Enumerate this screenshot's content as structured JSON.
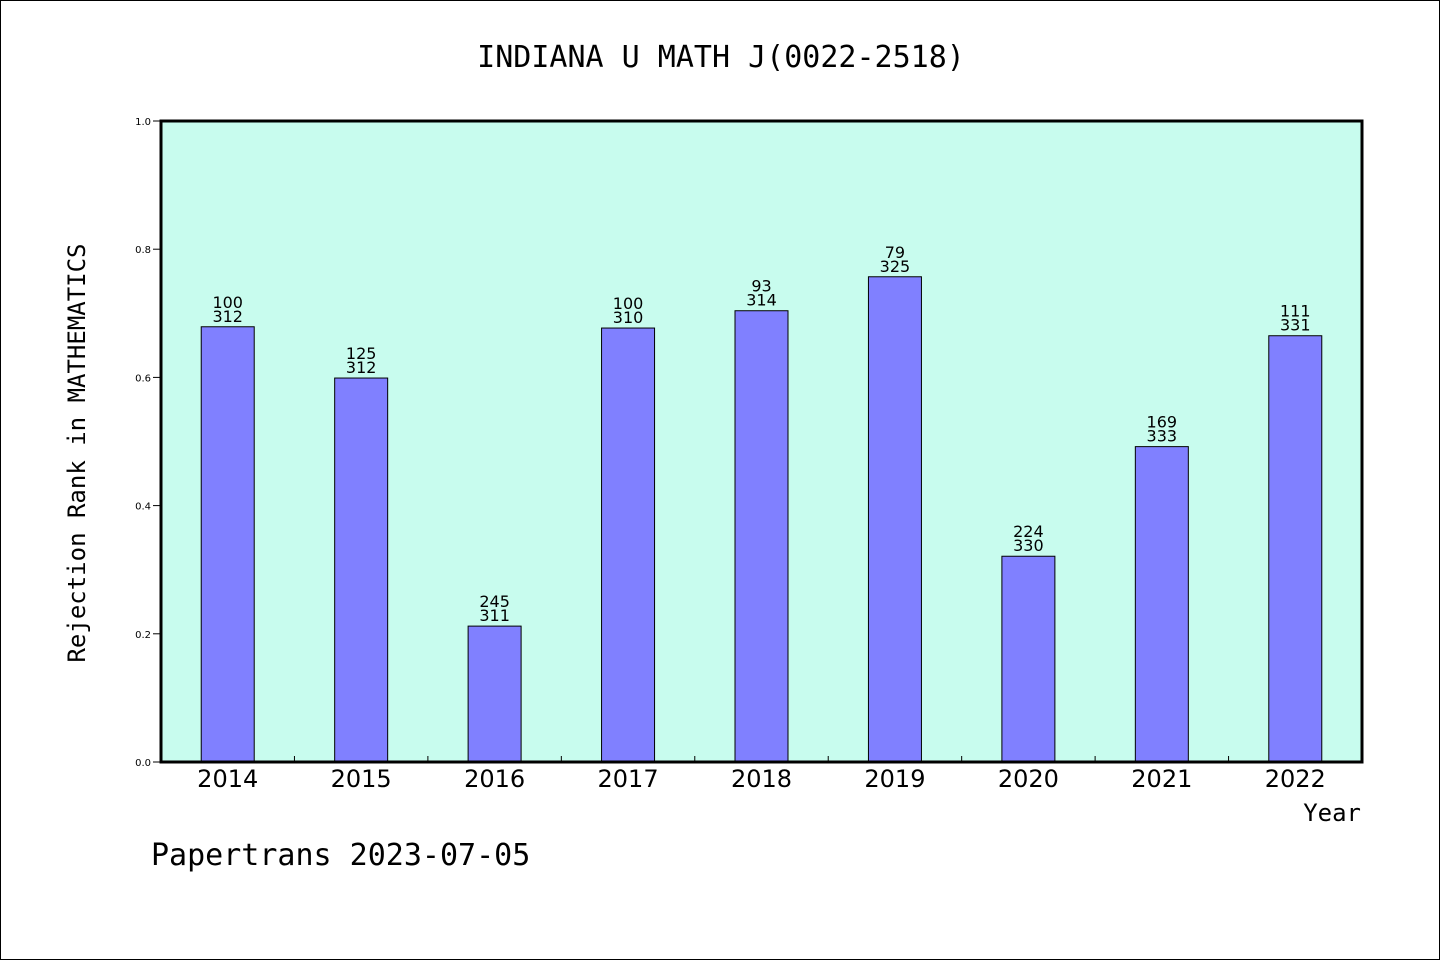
{
  "chart_data": {
    "type": "bar",
    "title": "INDIANA U MATH J(0022-2518)",
    "xlabel": "Year",
    "ylabel": "Rejection Rank in MATHEMATICS",
    "ylim": [
      0,
      1.0
    ],
    "yticks": [
      "0.0",
      "0.2",
      "0.4",
      "0.6",
      "0.8",
      "1.0"
    ],
    "grid": false,
    "background_color": "#c8fcee",
    "bar_color": "#8080ff",
    "categories": [
      "2014",
      "2015",
      "2016",
      "2017",
      "2018",
      "2019",
      "2020",
      "2021",
      "2022"
    ],
    "values": [
      0.679,
      0.599,
      0.212,
      0.677,
      0.704,
      0.757,
      0.321,
      0.492,
      0.665
    ],
    "bar_labels": [
      {
        "rank": "100",
        "total": "312"
      },
      {
        "rank": "125",
        "total": "312"
      },
      {
        "rank": "245",
        "total": "311"
      },
      {
        "rank": "100",
        "total": "310"
      },
      {
        "rank": "93",
        "total": "314"
      },
      {
        "rank": "79",
        "total": "325"
      },
      {
        "rank": "224",
        "total": "330"
      },
      {
        "rank": "169",
        "total": "333"
      },
      {
        "rank": "111",
        "total": "331"
      }
    ]
  },
  "footer": "Papertrans 2023-07-05"
}
